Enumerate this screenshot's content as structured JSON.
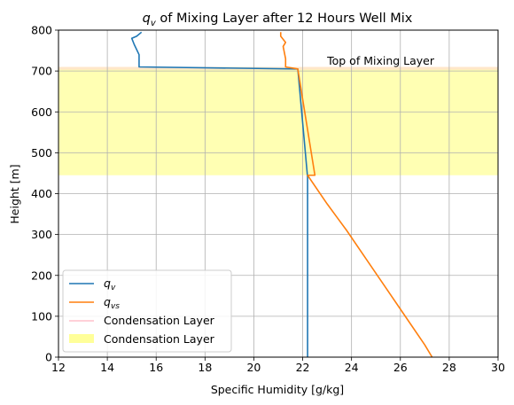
{
  "chart_data": {
    "type": "line",
    "title_main": "q",
    "title_sub": "v",
    "title_rest": " of Mixing Layer after 12 Hours Well Mix",
    "xlabel": "Specific Humidity [g/kg]",
    "ylabel": "Height [m]",
    "xlim": [
      12,
      30
    ],
    "ylim": [
      0,
      800
    ],
    "xticks": [
      12,
      14,
      16,
      18,
      20,
      22,
      24,
      26,
      28,
      30
    ],
    "yticks": [
      0,
      100,
      200,
      300,
      400,
      500,
      600,
      700,
      800
    ],
    "grid": true,
    "series": [
      {
        "label_main": "q",
        "label_sub": "v",
        "color": "#1f77b4",
        "x": [
          22.2,
          22.2,
          22.2,
          21.8,
          15.3,
          15.3,
          15.1,
          15.0,
          15.2,
          15.4
        ],
        "y": [
          0,
          100,
          440,
          705,
          710,
          740,
          765,
          780,
          785,
          795
        ]
      },
      {
        "label_main": "q",
        "label_sub": "vs",
        "color": "#ff7f0e",
        "x": [
          27.3,
          27.0,
          26.2,
          25.4,
          24.6,
          23.8,
          23.0,
          22.2,
          22.5,
          21.8,
          21.3,
          21.3,
          21.2,
          21.3,
          21.1,
          21.1
        ],
        "y": [
          0,
          30,
          100,
          170,
          240,
          310,
          375,
          445,
          445,
          705,
          710,
          730,
          760,
          770,
          785,
          795
        ]
      }
    ],
    "legend": {
      "position": "lower-left",
      "entries": [
        {
          "label_main": "q",
          "label_sub": "v",
          "kind": "line",
          "color": "#1f77b4"
        },
        {
          "label_main": "q",
          "label_sub": "vs",
          "kind": "line",
          "color": "#ff7f0e"
        },
        {
          "label": "Condensation Layer",
          "kind": "line",
          "color": "#ffc0cb"
        },
        {
          "label": "Condensation Layer",
          "kind": "patch",
          "color": "#ffff99"
        }
      ]
    },
    "bands": [
      {
        "y0": 445,
        "y1": 705,
        "color": "#ffff99",
        "opacity": 0.75
      },
      {
        "y0": 703,
        "y1": 710,
        "color": "#ffe4c4",
        "opacity": 0.9
      }
    ],
    "annotation": {
      "text": "Top of Mixing Layer",
      "x": 23,
      "y": 715
    }
  }
}
